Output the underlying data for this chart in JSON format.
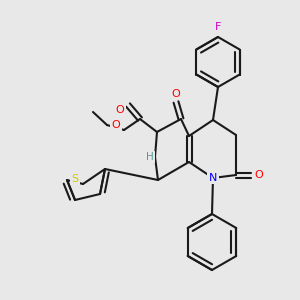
{
  "background_color": "#e8e8e8",
  "bond_color": "#1a1a1a",
  "figsize": [
    3.0,
    3.0
  ],
  "dpi": 100,
  "atom_colors": {
    "O": "#ff0000",
    "N": "#0000ff",
    "S": "#cccc00",
    "F": "#cc00cc",
    "H": "#5a9a9a"
  },
  "bond_width": 1.5,
  "font_size": 7.5
}
